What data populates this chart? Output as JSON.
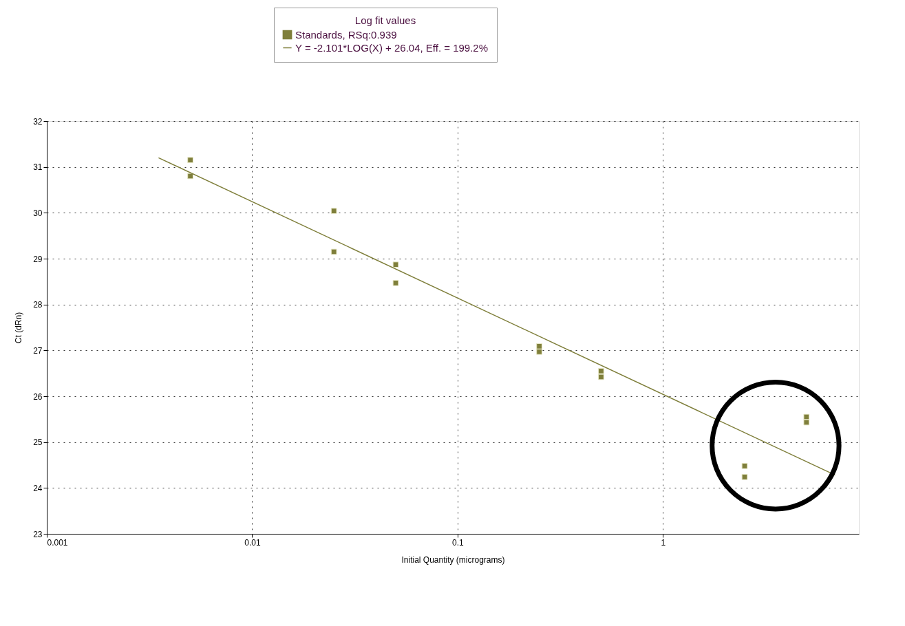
{
  "chart_data": {
    "type": "scatter",
    "xlabel": "Initial Quantity (micrograms)",
    "ylabel": "Ct (dRn)",
    "legend_title": "Log fit values",
    "series": [
      {
        "name": "Standards, RSq:0.939",
        "color": "#7f7f3b",
        "marker": "square",
        "x": [
          0.005,
          0.005,
          0.025,
          0.025,
          0.05,
          0.05,
          0.25,
          0.25,
          0.5,
          0.5,
          2.5,
          2.5,
          5,
          5
        ],
        "values": [
          31.15,
          30.8,
          30.04,
          29.15,
          28.87,
          28.47,
          27.09,
          26.97,
          26.55,
          26.42,
          24.48,
          24.24,
          25.55,
          25.43
        ]
      },
      {
        "name": "Y = -2.101*LOG(X) + 26.04, Eff. = 199.2%",
        "type": "line",
        "color": "#7f7f3b",
        "x": [
          0.0035,
          6.9
        ],
        "values": [
          31.2,
          24.28
        ]
      }
    ],
    "log": "x",
    "xlim": [
      0.001,
      9
    ],
    "xticks": [
      0.001,
      0.01,
      0.1,
      1
    ],
    "ylim": [
      23,
      32
    ],
    "yticks": [
      23,
      24,
      25,
      26,
      27,
      28,
      29,
      30,
      31,
      32
    ],
    "grid": true,
    "legend": "top"
  }
}
